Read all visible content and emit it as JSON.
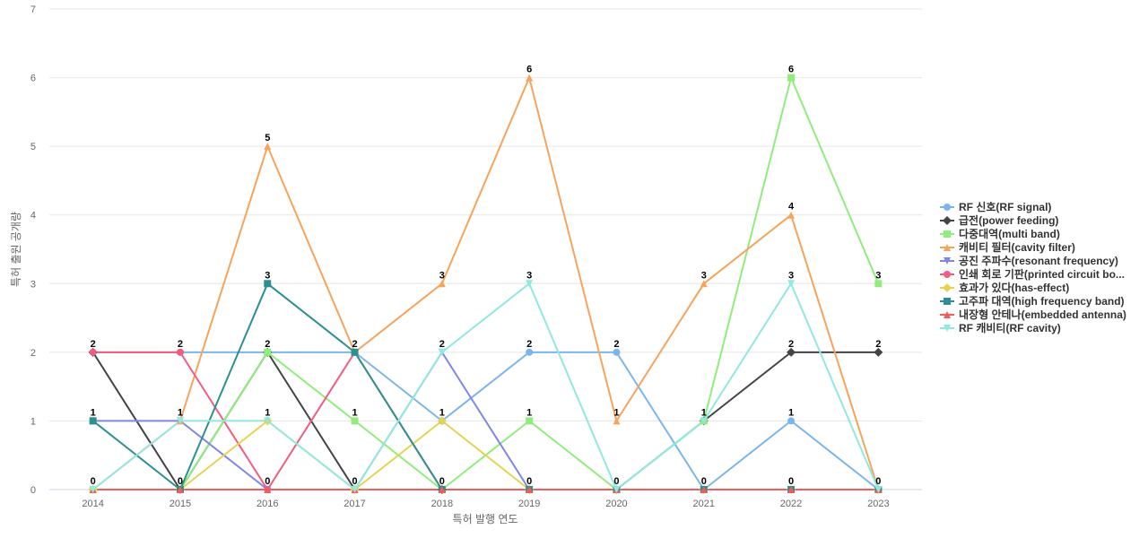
{
  "chart_data": {
    "type": "line",
    "title": "",
    "xlabel": "특허 발행 연도",
    "ylabel": "특허 출원 공개량",
    "categories": [
      "2014",
      "2015",
      "2016",
      "2017",
      "2018",
      "2019",
      "2020",
      "2021",
      "2022",
      "2023"
    ],
    "ylim": [
      0,
      7
    ],
    "yticks": [
      "0",
      "1",
      "2",
      "3",
      "4",
      "5",
      "6",
      "7"
    ],
    "grid": true,
    "legend_position": "right",
    "series": [
      {
        "name": "RF 신호(RF signal)",
        "color": "#7cb5ec",
        "marker": "circle",
        "values": [
          2,
          2,
          2,
          2,
          1,
          2,
          2,
          0,
          1,
          0
        ]
      },
      {
        "name": "급전(power feeding)",
        "color": "#434348",
        "marker": "diamond",
        "values": [
          2,
          0,
          2,
          0,
          0,
          0,
          0,
          1,
          2,
          2
        ]
      },
      {
        "name": "다중대역(multi band)",
        "color": "#90ed7d",
        "marker": "square",
        "values": [
          0,
          0,
          2,
          1,
          0,
          1,
          0,
          1,
          6,
          3
        ]
      },
      {
        "name": "캐비티 필터(cavity filter)",
        "color": "#f7a35c",
        "marker": "triangle",
        "values": [
          0,
          1,
          5,
          2,
          3,
          6,
          1,
          3,
          4,
          0
        ]
      },
      {
        "name": "공진 주파수(resonant frequency)",
        "color": "#8085e9",
        "marker": "triangle-down",
        "values": [
          1,
          1,
          0,
          0,
          2,
          0,
          0,
          0,
          0,
          0
        ]
      },
      {
        "name": "인쇄 회로 기판(printed circuit bo...",
        "color": "#f15c80",
        "marker": "circle",
        "values": [
          2,
          2,
          0,
          2,
          0,
          0,
          0,
          0,
          0,
          0
        ]
      },
      {
        "name": "효과가 있다(has-effect)",
        "color": "#e4d354",
        "marker": "diamond",
        "values": [
          0,
          0,
          1,
          0,
          1,
          0,
          0,
          0,
          0,
          0
        ]
      },
      {
        "name": "고주파 대역(high frequency band)",
        "color": "#2b908f",
        "marker": "square",
        "values": [
          1,
          0,
          3,
          2,
          0,
          0,
          0,
          0,
          0,
          0
        ]
      },
      {
        "name": "내장형 안테나(embedded antenna)",
        "color": "#f45b5b",
        "marker": "triangle",
        "values": [
          0,
          0,
          0,
          0,
          0,
          0,
          0,
          0,
          0,
          0
        ]
      },
      {
        "name": "RF 캐비티(RF cavity)",
        "color": "#91e8e1",
        "marker": "triangle-down",
        "values": [
          0,
          1,
          1,
          0,
          2,
          3,
          0,
          1,
          3,
          0
        ]
      }
    ],
    "data_labels": [
      {
        "category": "2014",
        "values": [
          "2",
          "1",
          "0"
        ]
      },
      {
        "category": "2015",
        "values": [
          "2",
          "1",
          "0"
        ]
      },
      {
        "category": "2016",
        "values": [
          "5",
          "3",
          "2",
          "1",
          "0"
        ]
      },
      {
        "category": "2017",
        "values": [
          "2",
          "1",
          "0"
        ]
      },
      {
        "category": "2018",
        "values": [
          "3",
          "2",
          "1",
          "0"
        ]
      },
      {
        "category": "2019",
        "values": [
          "6",
          "3",
          "2",
          "1",
          "0"
        ]
      },
      {
        "category": "2020",
        "values": [
          "2",
          "1",
          "0"
        ]
      },
      {
        "category": "2021",
        "values": [
          "3",
          "1",
          "0"
        ]
      },
      {
        "category": "2022",
        "values": [
          "6",
          "4",
          "3",
          "2",
          "1",
          "0"
        ]
      },
      {
        "category": "2023",
        "values": [
          "3",
          "2",
          "0"
        ]
      }
    ]
  }
}
